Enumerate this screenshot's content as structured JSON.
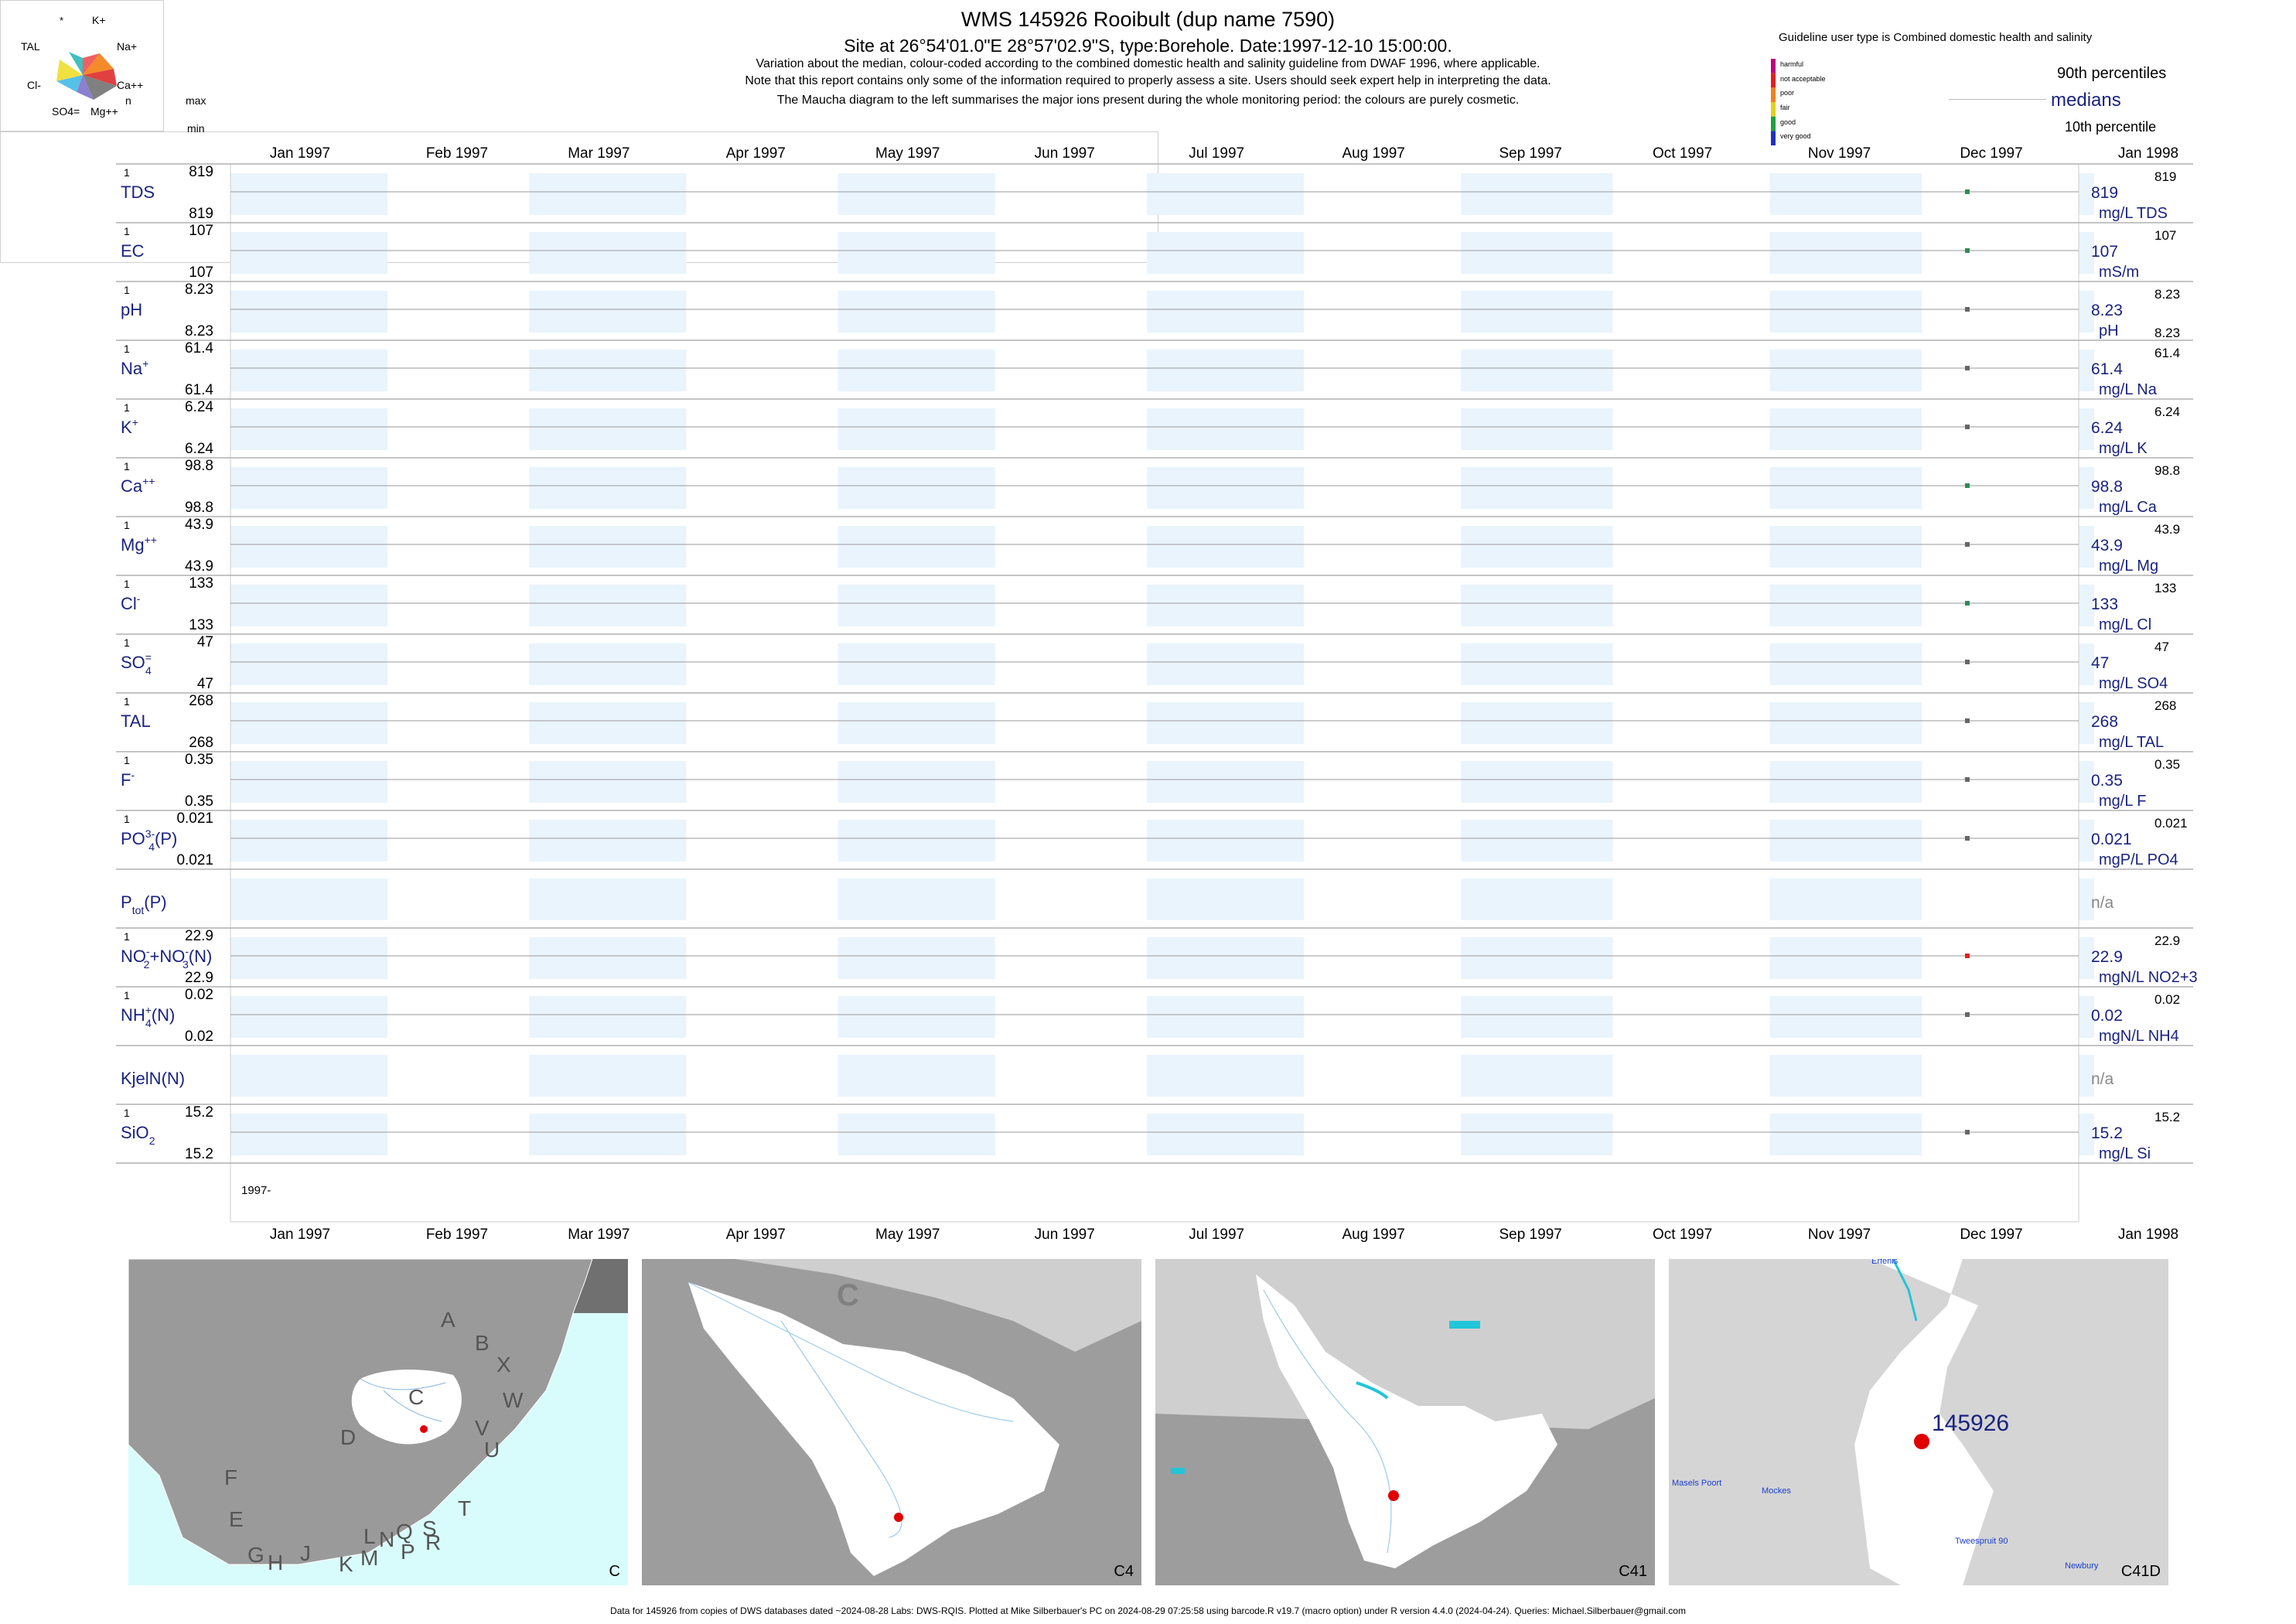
{
  "header": {
    "title": "WMS 145926  Rooibult (dup name 7590)",
    "subtitle": "Site at 26°54'01.0\"E 28°57'02.9\"S, type:Borehole. Date:1997-12-10 15:00:00.",
    "note1": "Variation about the median,  colour-coded according to the combined domestic health and salinity guideline from DWAF 1996, where applicable.",
    "note2": "Note that this report contains only some of the information required to properly assess a site. Users should seek expert help in interpreting the data.",
    "note3": "The Maucha diagram to the left summarises the major ions present during the whole monitoring period: the colours are purely cosmetic."
  },
  "maucha": {
    "labels": [
      "*",
      "K+",
      "TAL",
      "Na+",
      "Cl-",
      "Ca++",
      "SO4=",
      "Mg++"
    ],
    "colors": {
      "k": "#f06060",
      "na": "#f58a2a",
      "ca": "#e04040",
      "mg": "#808080",
      "so4": "#8b7fd0",
      "cl": "#55c0e8",
      "tal": "#f0e040",
      "star": "#40c0c0"
    }
  },
  "guideline": {
    "title": "Guideline user type is Combined domestic health and salinity",
    "levels": [
      {
        "label": "harmful",
        "color": "#c00080"
      },
      {
        "label": "not acceptable",
        "color": "#e02020"
      },
      {
        "label": "poor",
        "color": "#f08020"
      },
      {
        "label": "fair",
        "color": "#e0d020"
      },
      {
        "label": "good",
        "color": "#20a040"
      },
      {
        "label": "very good",
        "color": "#2030c0"
      }
    ],
    "p90": "90th percentiles",
    "medians": "medians",
    "p10": "10th percentile"
  },
  "col_headers": {
    "n": "n",
    "max": "max",
    "min": "min"
  },
  "months": [
    "Jan 1997",
    "Feb 1997",
    "Mar 1997",
    "Apr 1997",
    "May 1997",
    "Jun 1997",
    "Jul 1997",
    "Aug 1997",
    "Sep 1997",
    "Oct 1997",
    "Nov 1997",
    "Dec 1997",
    "Jan 1998"
  ],
  "year_label": "1997-",
  "chart_data": {
    "type": "scatter",
    "x_range": [
      "1997-01-01",
      "1998-01-01"
    ],
    "sample_date": "1997-12-10",
    "variables": [
      {
        "name": "TDS",
        "n": "1",
        "max": "819",
        "min": "819",
        "value": 819,
        "median": "819",
        "unit": "mg/L TDS",
        "p90": "819",
        "p10": "",
        "color": "#2e8b57"
      },
      {
        "name": "EC",
        "n": "1",
        "max": "107",
        "min": "107",
        "value": 107,
        "median": "107",
        "unit": "mS/m",
        "p90": "107",
        "p10": "",
        "color": "#2e8b57"
      },
      {
        "name": "pH",
        "n": "1",
        "max": "8.23",
        "min": "8.23",
        "value": 8.23,
        "median": "8.23",
        "unit": "pH",
        "p90": "8.23",
        "p10": "8.23",
        "color": "#666666"
      },
      {
        "name": "Na+",
        "n": "1",
        "max": "61.4",
        "min": "61.4",
        "value": 61.4,
        "median": "61.4",
        "unit": "mg/L Na",
        "p90": "61.4",
        "p10": "",
        "color": "#666666"
      },
      {
        "name": "K+",
        "n": "1",
        "max": "6.24",
        "min": "6.24",
        "value": 6.24,
        "median": "6.24",
        "unit": "mg/L K",
        "p90": "6.24",
        "p10": "",
        "color": "#666666"
      },
      {
        "name": "Ca++",
        "n": "1",
        "max": "98.8",
        "min": "98.8",
        "value": 98.8,
        "median": "98.8",
        "unit": "mg/L Ca",
        "p90": "98.8",
        "p10": "",
        "color": "#2e8b57"
      },
      {
        "name": "Mg++",
        "n": "1",
        "max": "43.9",
        "min": "43.9",
        "value": 43.9,
        "median": "43.9",
        "unit": "mg/L Mg",
        "p90": "43.9",
        "p10": "",
        "color": "#666666"
      },
      {
        "name": "Cl-",
        "n": "1",
        "max": "133",
        "min": "133",
        "value": 133,
        "median": "133",
        "unit": "mg/L Cl",
        "p90": "133",
        "p10": "",
        "color": "#2e8b57"
      },
      {
        "name": "SO4=",
        "n": "1",
        "max": "47",
        "min": "47",
        "value": 47,
        "median": "47",
        "unit": "mg/L SO4",
        "p90": "47",
        "p10": "",
        "color": "#666666"
      },
      {
        "name": "TAL",
        "n": "1",
        "max": "268",
        "min": "268",
        "value": 268,
        "median": "268",
        "unit": "mg/L TAL",
        "p90": "268",
        "p10": "",
        "color": "#666666"
      },
      {
        "name": "F-",
        "n": "1",
        "max": "0.35",
        "min": "0.35",
        "value": 0.35,
        "median": "0.35",
        "unit": "mg/L F",
        "p90": "0.35",
        "p10": "",
        "color": "#666666"
      },
      {
        "name": "PO4 3-(P)",
        "n": "1",
        "max": "0.021",
        "min": "0.021",
        "value": 0.021,
        "median": "0.021",
        "unit": "mgP/L PO4",
        "p90": "0.021",
        "p10": "",
        "color": "#666666"
      },
      {
        "name": "Ptot(P)",
        "n": "",
        "max": "",
        "min": "",
        "value": null,
        "median": "n/a",
        "unit": "",
        "p90": "",
        "p10": "",
        "color": "#666666"
      },
      {
        "name": "NO2-+NO3-(N)",
        "n": "1",
        "max": "22.9",
        "min": "22.9",
        "value": 22.9,
        "median": "22.9",
        "unit": "mgN/L NO2+3",
        "p90": "22.9",
        "p10": "",
        "color": "#e02020"
      },
      {
        "name": "NH4+(N)",
        "n": "1",
        "max": "0.02",
        "min": "0.02",
        "value": 0.02,
        "median": "0.02",
        "unit": "mgN/L NH4",
        "p90": "0.02",
        "p10": "",
        "color": "#666666"
      },
      {
        "name": "KjelN(N)",
        "n": "",
        "max": "",
        "min": "",
        "value": null,
        "median": "n/a",
        "unit": "",
        "p90": "",
        "p10": "",
        "color": "#666666"
      },
      {
        "name": "SiO2",
        "n": "1",
        "max": "15.2",
        "min": "15.2",
        "value": 15.2,
        "median": "15.2",
        "unit": "mg/L Si",
        "p90": "15.2",
        "p10": "",
        "color": "#666666"
      }
    ]
  },
  "maps": [
    {
      "label": "C",
      "regions": [
        "A",
        "B",
        "X",
        "W",
        "C",
        "D",
        "V",
        "U",
        "F",
        "T",
        "E",
        "L",
        "N",
        "Q",
        "S",
        "G",
        "H",
        "J",
        "K",
        "M",
        "P",
        "R",
        "C"
      ]
    },
    {
      "label": "C4",
      "region": "C"
    },
    {
      "label": "C41"
    },
    {
      "label": "C41D",
      "site": "145926",
      "places": [
        "Erfenis",
        "Masels Poort",
        "Mockes",
        "Tweespruit 90",
        "Newbury"
      ]
    }
  ],
  "footer": "Data for 145926 from copies of DWS databases dated ~2024-08-28 Labs: DWS-RQIS. Plotted at Mike Silberbauer's PC on 2024-08-29 07:25:58 using barcode.R v19.7 (macro option) under R version 4.4.0 (2024-04-24). Queries: Michael.Silberbauer@gmail.com"
}
